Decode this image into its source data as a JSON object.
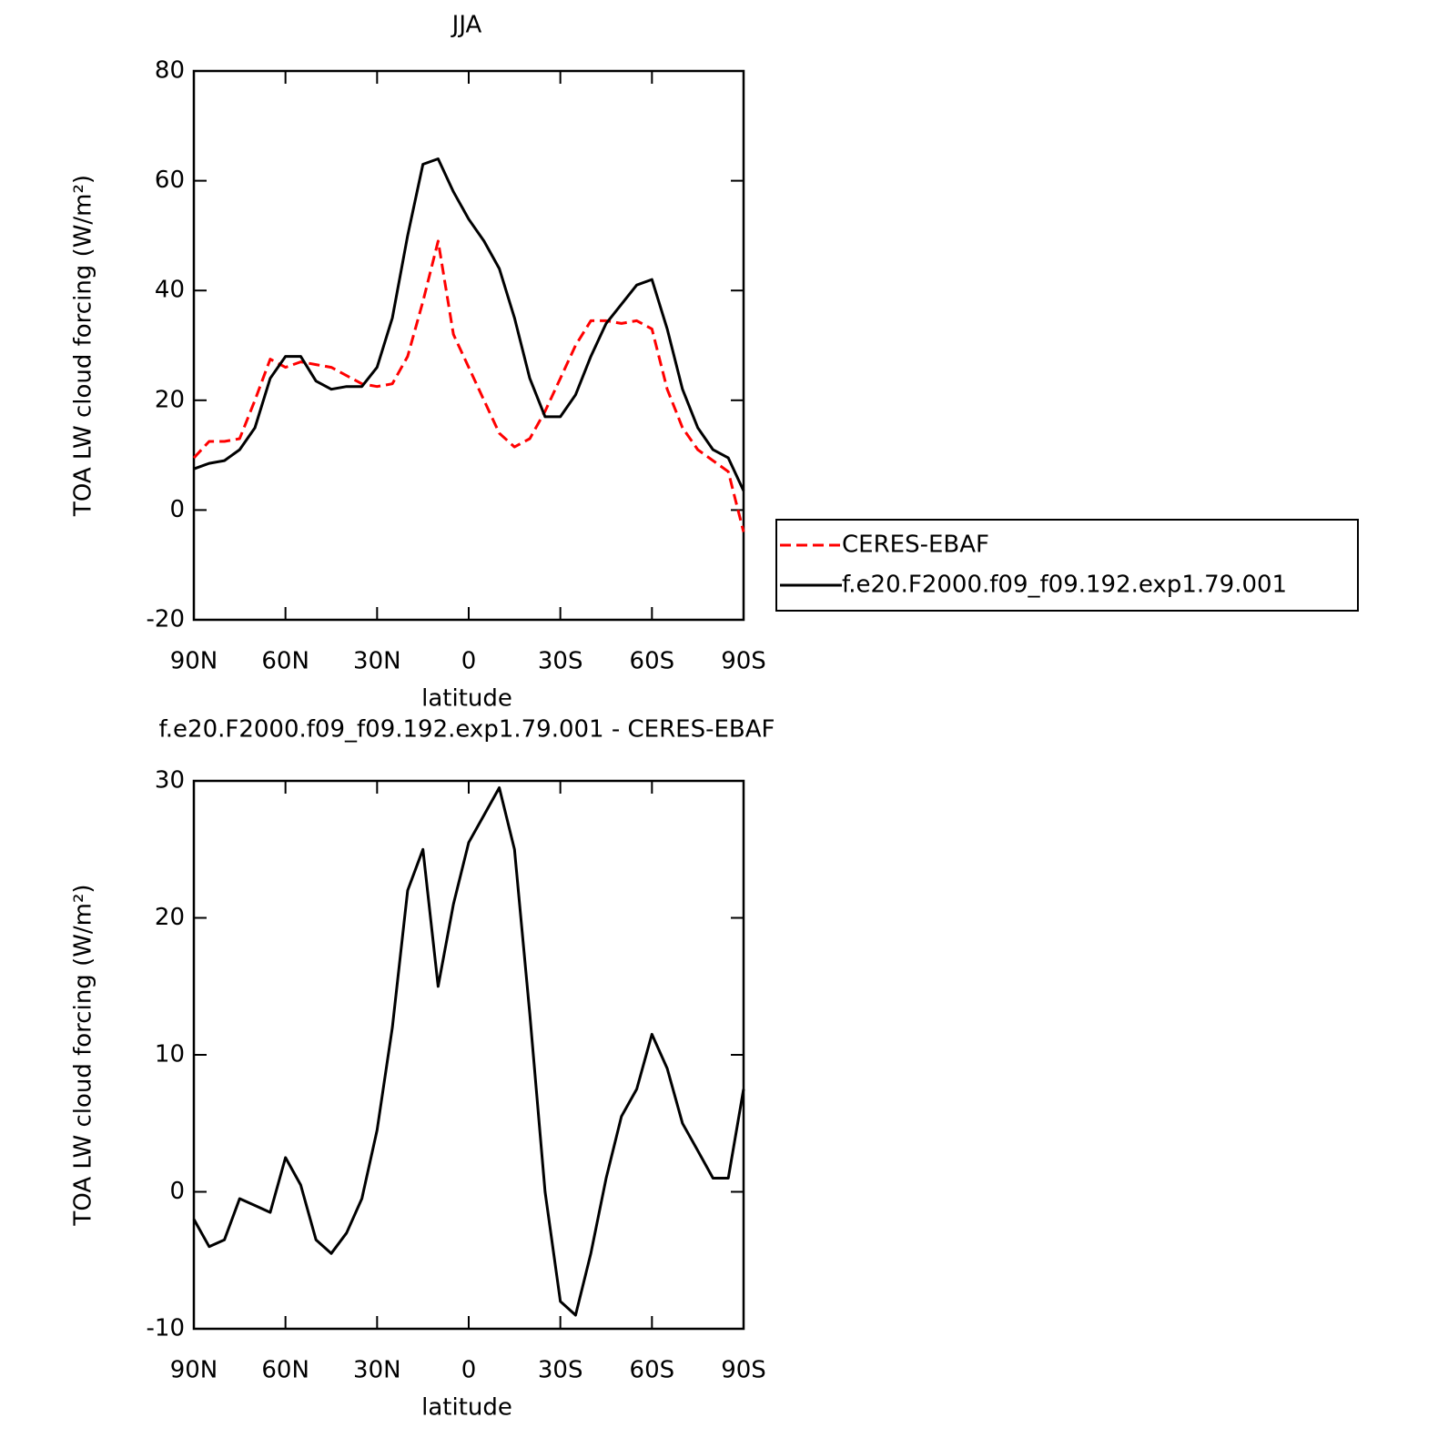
{
  "chart_data": [
    {
      "type": "line",
      "title": "JJA",
      "xlabel": "latitude",
      "ylabel": "TOA LW cloud forcing (W/m²)",
      "x": [
        90,
        85,
        80,
        75,
        70,
        65,
        60,
        55,
        50,
        45,
        40,
        35,
        30,
        25,
        20,
        15,
        10,
        5,
        0,
        -5,
        -10,
        -15,
        -20,
        -25,
        -30,
        -35,
        -40,
        -45,
        -50,
        -55,
        -60,
        -65,
        -70,
        -75,
        -80,
        -85,
        -90
      ],
      "xlim": [
        90,
        -90
      ],
      "xticks": [
        {
          "value": 90,
          "label": "90N"
        },
        {
          "value": 60,
          "label": "60N"
        },
        {
          "value": 30,
          "label": "30N"
        },
        0,
        {
          "value": -30,
          "label": "30S"
        },
        {
          "value": -60,
          "label": "60S"
        },
        {
          "value": -90,
          "label": "90S"
        }
      ],
      "ylim": [
        -20,
        80
      ],
      "yticks": [
        -20,
        0,
        20,
        40,
        60,
        80
      ],
      "legend": "right",
      "series": [
        {
          "name": "CERES-EBAF",
          "color": "#ff0000",
          "style": "dashed",
          "values": [
            9.5,
            12.5,
            12.5,
            13,
            20,
            27.5,
            26,
            27,
            26.5,
            26,
            24.5,
            23,
            22.5,
            23,
            28,
            38,
            49,
            32,
            26,
            20,
            14,
            11.5,
            13,
            18,
            24,
            30,
            34.5,
            34.5,
            34,
            34.5,
            33,
            22,
            15,
            11,
            9,
            7,
            -4
          ]
        },
        {
          "name": "f.e20.F2000.f09_f09.192.exp1.79.001",
          "color": "#000000",
          "style": "solid",
          "values": [
            7.5,
            8.5,
            9,
            11,
            15,
            24,
            28,
            28,
            23.5,
            22,
            22.5,
            22.5,
            26,
            35,
            50,
            63,
            64,
            58,
            53,
            49,
            44,
            35,
            24,
            17,
            17,
            21,
            28,
            34,
            37.5,
            41,
            42,
            33,
            22,
            15,
            11,
            9.5,
            3.5
          ]
        }
      ]
    },
    {
      "type": "line",
      "title": "f.e20.F2000.f09_f09.192.exp1.79.001 - CERES-EBAF",
      "xlabel": "latitude",
      "ylabel": "TOA LW cloud forcing (W/m²)",
      "x": [
        90,
        85,
        80,
        75,
        70,
        65,
        60,
        55,
        50,
        45,
        40,
        35,
        30,
        25,
        20,
        15,
        10,
        5,
        0,
        -5,
        -10,
        -15,
        -20,
        -25,
        -30,
        -35,
        -40,
        -45,
        -50,
        -55,
        -60,
        -65,
        -70,
        -75,
        -80,
        -85,
        -90
      ],
      "xlim": [
        90,
        -90
      ],
      "xticks": [
        {
          "value": 90,
          "label": "90N"
        },
        {
          "value": 60,
          "label": "60N"
        },
        {
          "value": 30,
          "label": "30N"
        },
        0,
        {
          "value": -30,
          "label": "30S"
        },
        {
          "value": -60,
          "label": "60S"
        },
        {
          "value": -90,
          "label": "90S"
        }
      ],
      "ylim": [
        -10,
        30
      ],
      "yticks": [
        -10,
        0,
        10,
        20,
        30
      ],
      "series": [
        {
          "color": "#000000",
          "style": "solid",
          "values": [
            -2,
            -4,
            -3.5,
            -0.5,
            -1,
            -1.5,
            2.5,
            0.5,
            -3.5,
            -4.5,
            -3,
            -0.5,
            4.5,
            12,
            22,
            25,
            15,
            21,
            25.5,
            27.5,
            29.5,
            25,
            13,
            0,
            -8,
            -9,
            -4.5,
            1,
            5.5,
            7.5,
            11.5,
            9,
            5,
            3,
            1,
            1,
            7.5
          ]
        }
      ]
    }
  ]
}
